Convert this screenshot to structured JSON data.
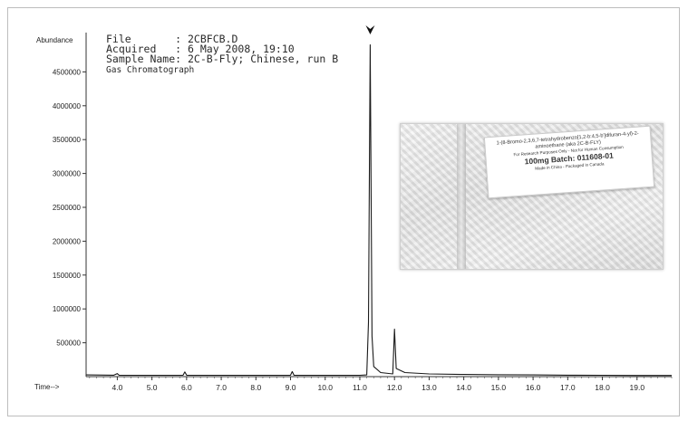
{
  "header": {
    "file_line": "File       : 2CBFCB.D",
    "acquired_line": "Acquired   : 6 May 2008, 19:10",
    "sample_line": "Sample Name: 2C-B-Fly; Chinese, run B",
    "instrument_line": "Gas Chromatograph"
  },
  "package_label": {
    "line1": "1-(8-Bromo-2,3,6,7-tetrahydrobenzo[1,2-b:4,5-b']difuran-4-yl)-2-aminoethane (aka 2C-B-FLY)",
    "line2": "For Research Purposes Only - Not for Human Consumption",
    "line3": "100mg  Batch: 011608-01",
    "line4": "Made in China - Packaged in Canada"
  },
  "chart_data": {
    "type": "line",
    "ylabel": "Abundance",
    "xlabel": "Time-->",
    "xlim": [
      3.1,
      20.0
    ],
    "ylim": [
      0,
      5000000
    ],
    "yticks": [
      500000,
      1000000,
      1500000,
      2000000,
      2500000,
      3000000,
      3500000,
      4000000,
      4500000
    ],
    "ytick_labels": [
      "500000",
      "1000000",
      "1500000",
      "2000000",
      "2500000",
      "3000000",
      "3500000",
      "4000000",
      "4500000"
    ],
    "xticks": [
      4.0,
      5.0,
      6.0,
      7.0,
      8.0,
      9.0,
      10.0,
      11.0,
      12.0,
      13.0,
      14.0,
      15.0,
      16.0,
      17.0,
      18.0,
      19.0
    ],
    "xtick_labels": [
      "4.0",
      "5.0",
      "6.0",
      "7.0",
      "8.0",
      "9.0",
      "10.0",
      "11.0",
      "12.0",
      "13.0",
      "14.0",
      "15.0",
      "16.0",
      "17.0",
      "18.0",
      "19.0"
    ],
    "annotation_marker": {
      "x": 11.3,
      "shape": "arrowhead-down"
    },
    "series": [
      {
        "points": [
          [
            3.1,
            25000
          ],
          [
            3.9,
            22000
          ],
          [
            4.0,
            45000
          ],
          [
            4.05,
            22000
          ],
          [
            5.0,
            20000
          ],
          [
            5.9,
            22000
          ],
          [
            5.95,
            70000
          ],
          [
            6.0,
            22000
          ],
          [
            7.0,
            20000
          ],
          [
            8.0,
            20000
          ],
          [
            9.0,
            22000
          ],
          [
            9.05,
            75000
          ],
          [
            9.1,
            22000
          ],
          [
            10.0,
            20000
          ],
          [
            11.0,
            20000
          ],
          [
            11.2,
            25000
          ],
          [
            11.25,
            800000
          ],
          [
            11.3,
            4900000
          ],
          [
            11.35,
            600000
          ],
          [
            11.4,
            150000
          ],
          [
            11.6,
            60000
          ],
          [
            11.95,
            40000
          ],
          [
            12.0,
            700000
          ],
          [
            12.05,
            120000
          ],
          [
            12.3,
            60000
          ],
          [
            13.0,
            40000
          ],
          [
            14.0,
            32000
          ],
          [
            15.0,
            28000
          ],
          [
            16.0,
            25000
          ],
          [
            17.0,
            22000
          ],
          [
            18.0,
            20000
          ],
          [
            19.0,
            18000
          ],
          [
            20.0,
            18000
          ]
        ]
      }
    ]
  }
}
